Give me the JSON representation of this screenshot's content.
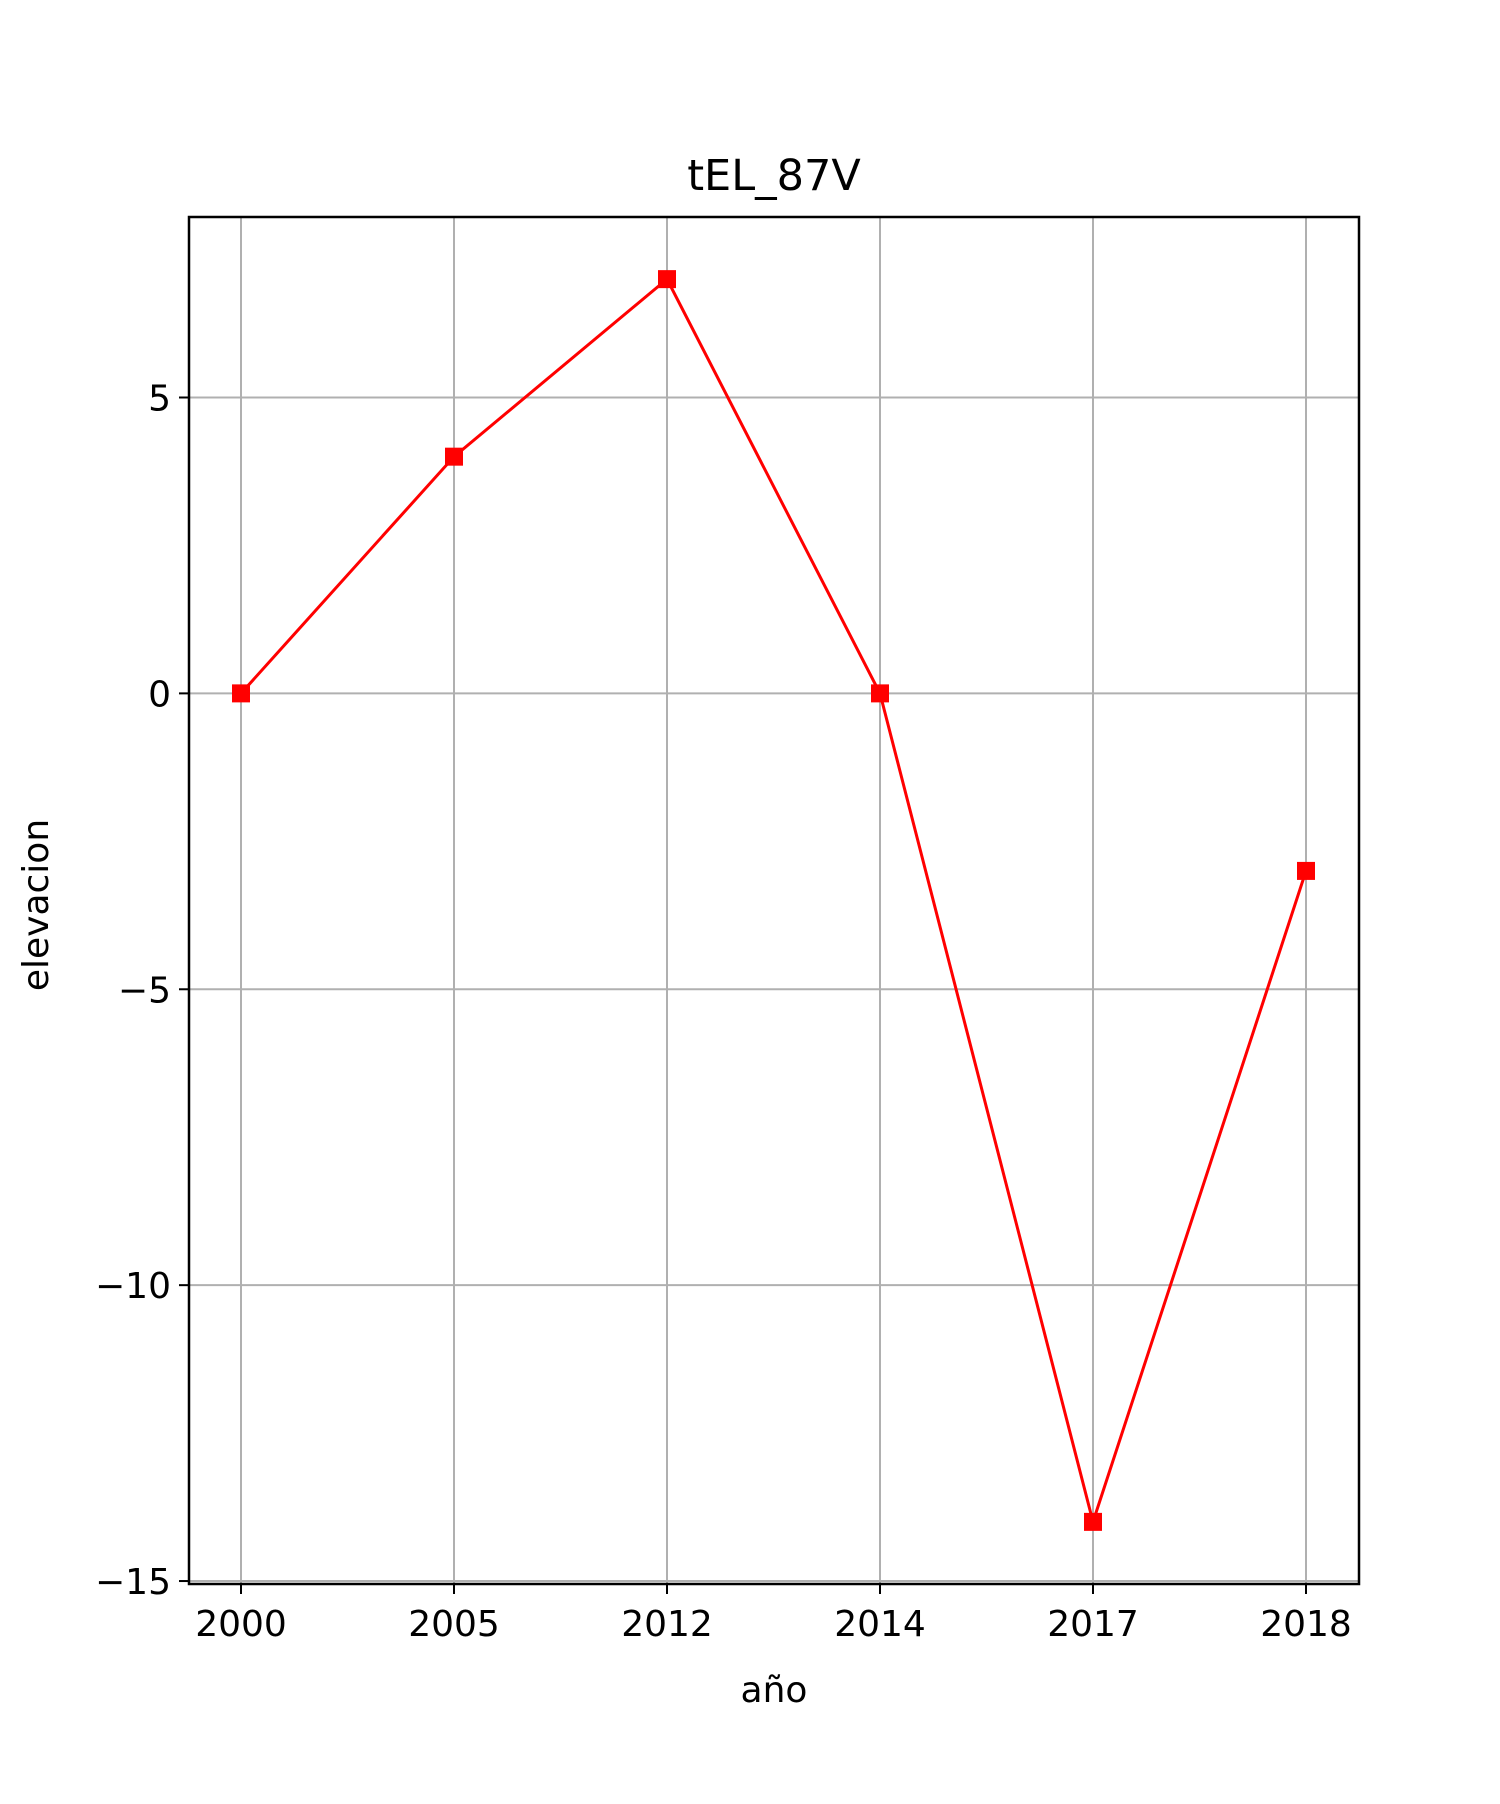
{
  "chart_data": {
    "type": "line",
    "title": "tEL_87V",
    "xlabel": "año",
    "ylabel": "elevacion",
    "categories": [
      "2000",
      "2005",
      "2012",
      "2014",
      "2017",
      "2018"
    ],
    "series": [
      {
        "values": [
          0,
          4,
          7,
          0,
          -14,
          -3
        ],
        "color": "#ff0000",
        "marker": "square"
      }
    ],
    "yticks": [
      5,
      0,
      -5,
      -10,
      -15
    ],
    "ytick_labels": [
      "5",
      "0",
      "−5",
      "−10",
      "−15"
    ],
    "ylim": [
      -15.05,
      8.05
    ],
    "grid": true,
    "grid_color": "#b0b0b0"
  }
}
